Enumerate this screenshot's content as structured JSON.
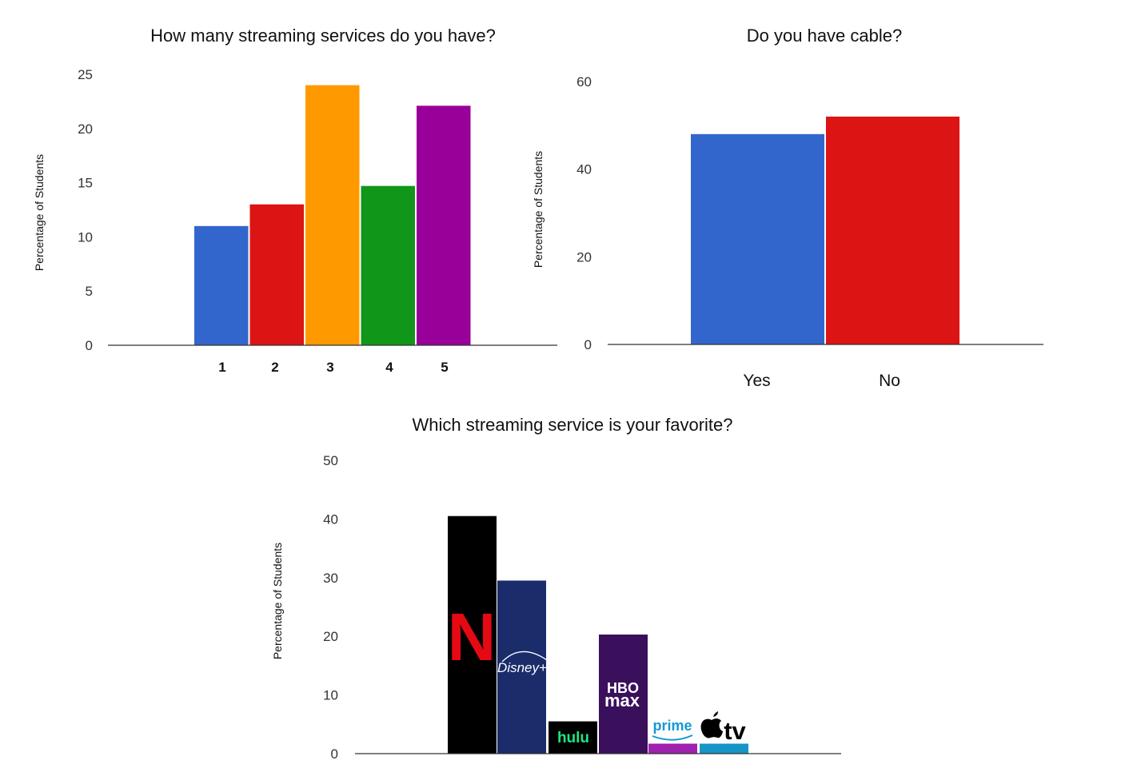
{
  "chart_data": [
    {
      "type": "bar",
      "title": "How many streaming services do you have?",
      "xlabel": "",
      "ylabel": "Percentage of Students",
      "categories": [
        "1",
        "2",
        "3",
        "4",
        "5"
      ],
      "values": [
        11,
        13,
        24,
        14.7,
        22.1
      ],
      "colors": [
        "#3366cc",
        "#dc1414",
        "#ff9900",
        "#109618",
        "#990099"
      ],
      "ylim": [
        0,
        25
      ],
      "yticks": [
        0,
        5,
        10,
        15,
        20,
        25
      ],
      "grid": false
    },
    {
      "type": "bar",
      "title": "Do you have cable?",
      "xlabel": "",
      "ylabel": "Percentage of Students",
      "categories": [
        "Yes",
        "No"
      ],
      "values": [
        48,
        52
      ],
      "colors": [
        "#3366cc",
        "#dc1414"
      ],
      "ylim": [
        0,
        60
      ],
      "yticks": [
        0,
        20,
        40,
        60
      ],
      "grid": false
    },
    {
      "type": "bar",
      "title": "Which streaming service is your favorite?",
      "xlabel": "",
      "ylabel": "Percentage of Students",
      "categories": [
        "Netflix",
        "Disney+",
        "Hulu",
        "HBO Max",
        "Prime Video",
        "Apple TV"
      ],
      "logo_texts": [
        "N",
        "Disney+",
        "hulu",
        "HBO max",
        "prime",
        "tv"
      ],
      "values": [
        40.5,
        29.5,
        5.5,
        20.3,
        1.7,
        1.7
      ],
      "colors": [
        "#000000",
        "#1b2c6b",
        "#000000",
        "#3a0f5c",
        "#a020b0",
        "#1696c8"
      ],
      "ylim": [
        0,
        50
      ],
      "yticks": [
        0,
        10,
        20,
        30,
        40,
        50
      ],
      "grid": false
    }
  ]
}
